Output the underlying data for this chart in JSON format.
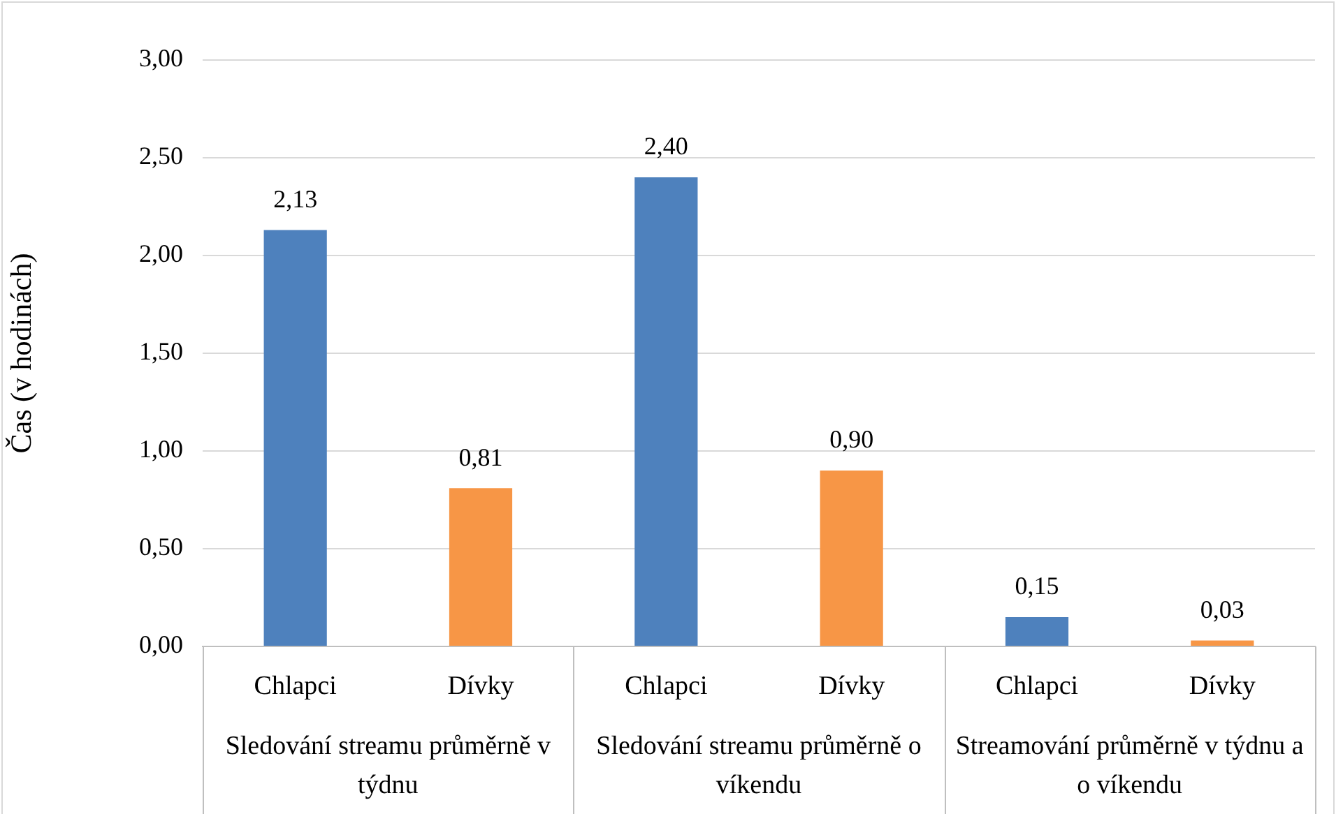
{
  "chart_data": {
    "type": "bar",
    "ylabel": "Čas (v hodinách)",
    "categories": [
      "Sledování streamu průměrně v týdnu",
      "Sledování streamu průměrně o víkendu",
      "Streamování průměrně v týdnu a o víkendu"
    ],
    "series": [
      {
        "name": "Chlapci",
        "color": "#4e81bd",
        "values": [
          2.13,
          2.4,
          0.15
        ],
        "value_labels": [
          "2,13",
          "2,40",
          "0,15"
        ]
      },
      {
        "name": "Dívky",
        "color": "#f79646",
        "values": [
          0.81,
          0.9,
          0.03
        ],
        "value_labels": [
          "0,81",
          "0,90",
          "0,03"
        ]
      }
    ],
    "ylim": [
      0,
      3
    ],
    "yticks": [
      {
        "value": 0,
        "label": "0,00"
      },
      {
        "value": 0.5,
        "label": "0,50"
      },
      {
        "value": 1,
        "label": "1,00"
      },
      {
        "value": 1.5,
        "label": "1,50"
      },
      {
        "value": 2,
        "label": "2,00"
      },
      {
        "value": 2.5,
        "label": "2,50"
      },
      {
        "value": 3,
        "label": "3,00"
      }
    ],
    "grid": "y",
    "legend": false
  }
}
